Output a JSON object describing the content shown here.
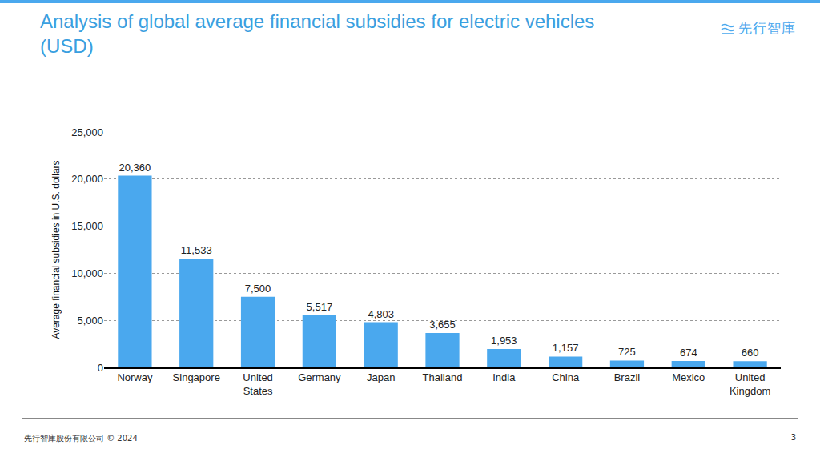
{
  "chart_data": {
    "type": "bar",
    "title": "Analysis of global average financial subsidies for electric vehicles (USD)",
    "y_label": "Average financial subsidies in U.S. dollars",
    "categories": [
      "Norway",
      "Singapore",
      "United States",
      "Germany",
      "Japan",
      "Thailand",
      "India",
      "China",
      "Brazil",
      "Mexico",
      "United Kingdom"
    ],
    "values": [
      20360,
      11533,
      7500,
      5517,
      4803,
      3655,
      1953,
      1157,
      725,
      674,
      660
    ],
    "value_labels": [
      "20,360",
      "11,533",
      "7,500",
      "5,517",
      "4,803",
      "3,655",
      "1,953",
      "1,157",
      "725",
      "674",
      "660"
    ],
    "color": "#4aa8ee",
    "ylim": [
      0,
      25000
    ],
    "yticks": [
      0,
      {
        "value": 5000,
        "label": "5,000"
      },
      {
        "value": 10000,
        "label": "10,000"
      },
      {
        "value": 15000,
        "label": "15,000"
      },
      {
        "value": 20000,
        "label": "20,000"
      },
      {
        "value": 25000,
        "label": "25,000"
      }
    ],
    "grid": true,
    "data_labels": true
  },
  "header": {
    "logo": "先行智庫"
  },
  "footer": {
    "text": "先行智庫股份有限公司 © 2024",
    "page": 3
  }
}
